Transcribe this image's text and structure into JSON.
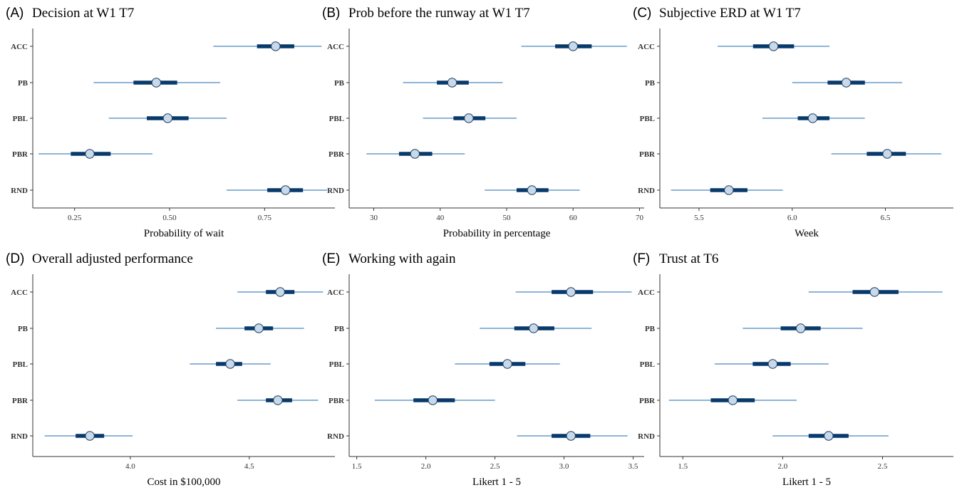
{
  "colors": {
    "thin_line": "#4a88c0",
    "thick_line": "#083a6b",
    "point_fill": "#c7d9ea",
    "point_stroke": "#1f3d5c",
    "axis": "#333333"
  },
  "chart_data": [
    {
      "type": "pointrange",
      "letter": "(A)",
      "title": "Decision at W1 T7",
      "xlabel": "Probability of wait",
      "categories": [
        "ACC",
        "PB",
        "PBL",
        "PBR",
        "RND"
      ],
      "xlim": [
        0.14,
        0.935
      ],
      "xticks": [
        0.25,
        0.5,
        0.75
      ],
      "xtick_labels": [
        "0.25",
        "0.50",
        "0.75"
      ],
      "estimate": [
        0.779,
        0.465,
        0.495,
        0.29,
        0.805
      ],
      "ci_inner": [
        [
          0.73,
          0.828
        ],
        [
          0.405,
          0.52
        ],
        [
          0.44,
          0.55
        ],
        [
          0.24,
          0.345
        ],
        [
          0.757,
          0.851
        ]
      ],
      "ci_outer": [
        [
          0.615,
          0.9
        ],
        [
          0.3,
          0.633
        ],
        [
          0.34,
          0.65
        ],
        [
          0.155,
          0.455
        ],
        [
          0.65,
          0.915
        ]
      ]
    },
    {
      "type": "pointrange",
      "letter": "(B)",
      "title": "Prob before the runway at W1 T7",
      "xlabel": "Probability in percentage",
      "categories": [
        "ACC",
        "PB",
        "PBL",
        "PBR",
        "RND"
      ],
      "xlim": [
        26.3,
        70.7
      ],
      "xticks": [
        30,
        40,
        50,
        60,
        70
      ],
      "xtick_labels": [
        "30",
        "40",
        "50",
        "60",
        "70"
      ],
      "estimate": [
        60,
        41.8,
        44.3,
        36.2,
        53.8
      ],
      "ci_inner": [
        [
          57.3,
          62.8
        ],
        [
          39.5,
          44.3
        ],
        [
          42,
          46.8
        ],
        [
          33.8,
          38.8
        ],
        [
          51.5,
          56.3
        ]
      ],
      "ci_outer": [
        [
          52.2,
          68.1
        ],
        [
          34.4,
          49.4
        ],
        [
          37.4,
          51.5
        ],
        [
          28.9,
          43.7
        ],
        [
          46.7,
          61
        ]
      ]
    },
    {
      "type": "pointrange",
      "letter": "(C)",
      "title": "Subjective ERD at W1 T7",
      "xlabel": "Week",
      "categories": [
        "ACC",
        "PB",
        "PBL",
        "PBR",
        "RND"
      ],
      "xlim": [
        5.29,
        6.865
      ],
      "xticks": [
        5.5,
        6,
        6.5
      ],
      "xtick_labels": [
        "5.5",
        "6.0",
        "6.5"
      ],
      "estimate": [
        5.9,
        6.29,
        6.11,
        6.51,
        5.66
      ],
      "ci_inner": [
        [
          5.79,
          6.01
        ],
        [
          6.19,
          6.39
        ],
        [
          6.03,
          6.2
        ],
        [
          6.4,
          6.61
        ],
        [
          5.56,
          5.76
        ]
      ],
      "ci_outer": [
        [
          5.6,
          6.2
        ],
        [
          6,
          6.59
        ],
        [
          5.84,
          6.39
        ],
        [
          6.21,
          6.8
        ],
        [
          5.35,
          5.95
        ]
      ]
    },
    {
      "type": "pointrange",
      "letter": "(D)",
      "title": "Overall adjusted performance",
      "xlabel": "Cost in $100,000",
      "categories": [
        "ACC",
        "PB",
        "PBL",
        "PBR",
        "RND"
      ],
      "xlim": [
        3.59,
        4.86
      ],
      "xticks": [
        4.0,
        4.5
      ],
      "xtick_labels": [
        "4.0",
        "4.5"
      ],
      "estimate": [
        4.63,
        4.54,
        4.42,
        4.62,
        3.83
      ],
      "ci_inner": [
        [
          4.57,
          4.69
        ],
        [
          4.48,
          4.6
        ],
        [
          4.36,
          4.47
        ],
        [
          4.57,
          4.68
        ],
        [
          3.77,
          3.89
        ]
      ],
      "ci_outer": [
        [
          4.45,
          4.81
        ],
        [
          4.36,
          4.73
        ],
        [
          4.25,
          4.59
        ],
        [
          4.45,
          4.79
        ],
        [
          3.64,
          4.01
        ]
      ]
    },
    {
      "type": "pointrange",
      "letter": "(E)",
      "title": "Working with again",
      "xlabel": "Likert 1 - 5",
      "categories": [
        "ACC",
        "PB",
        "PBL",
        "PBR",
        "RND"
      ],
      "xlim": [
        1.445,
        3.58
      ],
      "xticks": [
        1.5,
        2.0,
        2.5,
        3.0,
        3.5
      ],
      "xtick_labels": [
        "1.5",
        "2.0",
        "2.5",
        "3.0",
        "3.5"
      ],
      "estimate": [
        3.05,
        2.78,
        2.59,
        2.05,
        3.05
      ],
      "ci_inner": [
        [
          2.91,
          3.21
        ],
        [
          2.64,
          2.93
        ],
        [
          2.46,
          2.72
        ],
        [
          1.91,
          2.21
        ],
        [
          2.91,
          3.19
        ]
      ],
      "ci_outer": [
        [
          2.65,
          3.49
        ],
        [
          2.39,
          3.2
        ],
        [
          2.21,
          2.97
        ],
        [
          1.63,
          2.5
        ],
        [
          2.66,
          3.46
        ]
      ]
    },
    {
      "type": "pointrange",
      "letter": "(F)",
      "title": "Trust at T6",
      "xlabel": "Likert 1 - 5",
      "categories": [
        "ACC",
        "PB",
        "PBL",
        "PBR",
        "RND"
      ],
      "xlim": [
        1.385,
        2.855
      ],
      "xticks": [
        1.5,
        2.0,
        2.5
      ],
      "xtick_labels": [
        "1.5",
        "2.0",
        "2.5"
      ],
      "estimate": [
        2.46,
        2.09,
        1.95,
        1.75,
        2.23
      ],
      "ci_inner": [
        [
          2.35,
          2.58
        ],
        [
          1.99,
          2.19
        ],
        [
          1.85,
          2.04
        ],
        [
          1.64,
          1.86
        ],
        [
          2.13,
          2.33
        ]
      ],
      "ci_outer": [
        [
          2.13,
          2.8
        ],
        [
          1.8,
          2.4
        ],
        [
          1.66,
          2.23
        ],
        [
          1.43,
          2.07
        ],
        [
          1.95,
          2.53
        ]
      ]
    }
  ]
}
